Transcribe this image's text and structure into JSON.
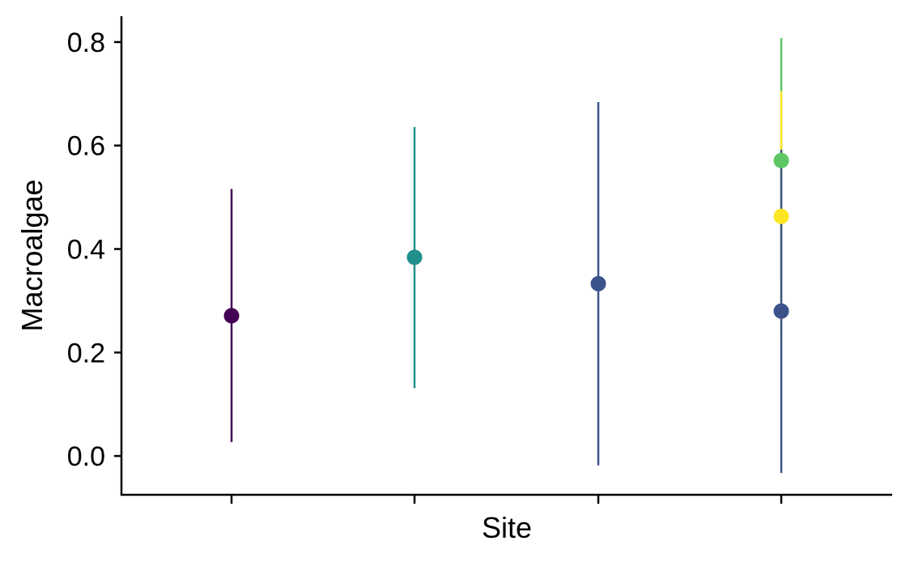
{
  "chart_data": {
    "type": "scatter",
    "title": "",
    "xlabel": "Site",
    "ylabel": "Macroalgae",
    "ylim": [
      -0.075,
      0.85
    ],
    "yticks": [
      "0.0",
      "0.2",
      "0.4",
      "0.6",
      "0.8"
    ],
    "ytick_values": [
      0.0,
      0.2,
      0.4,
      0.6,
      0.8
    ],
    "x_categories": [
      "",
      "",
      "",
      ""
    ],
    "grid": false,
    "legend": "none",
    "points": [
      {
        "site_index": 0,
        "y": 0.271,
        "ymin": 0.027,
        "ymax": 0.516,
        "color": "#440154"
      },
      {
        "site_index": 1,
        "y": 0.384,
        "ymin": 0.131,
        "ymax": 0.636,
        "color": "#21908C"
      },
      {
        "site_index": 2,
        "y": 0.333,
        "ymin": -0.018,
        "ymax": 0.684,
        "color": "#3B528B"
      },
      {
        "site_index": 3,
        "y": 0.571,
        "ymin": 0.335,
        "ymax": 0.808,
        "color": "#5DC863"
      },
      {
        "site_index": 3,
        "y": 0.463,
        "ymin": 0.222,
        "ymax": 0.705,
        "color": "#FDE725"
      },
      {
        "site_index": 3,
        "y": 0.28,
        "ymin": -0.033,
        "ymax": 0.592,
        "color": "#3B528B"
      }
    ]
  }
}
